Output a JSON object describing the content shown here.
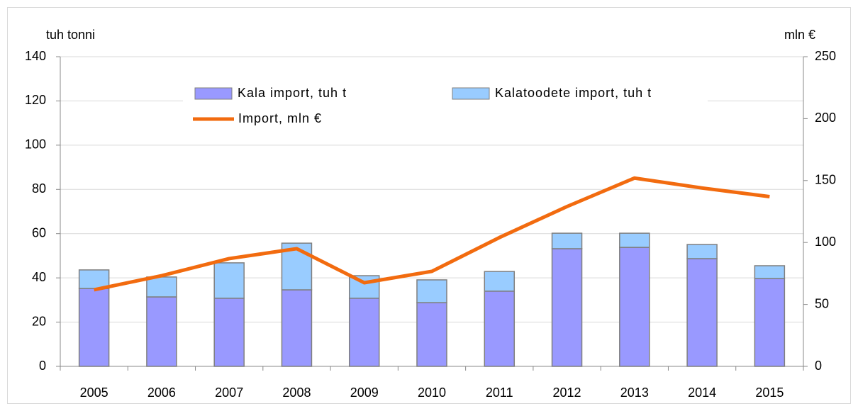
{
  "chart_data": {
    "type": "bar",
    "stacked": true,
    "y_label": "tuh tonni",
    "y2_label": "mln €",
    "categories": [
      "2005",
      "2006",
      "2007",
      "2008",
      "2009",
      "2010",
      "2011",
      "2012",
      "2013",
      "2014",
      "2015"
    ],
    "series": [
      {
        "name": "Kala import, tuh t",
        "type": "bar",
        "color": "#9999ff",
        "values": [
          35.2,
          31.4,
          30.8,
          34.6,
          30.8,
          28.8,
          34,
          53.2,
          53.8,
          48.7,
          39.7
        ]
      },
      {
        "name": "Kalatoodete import, tuh t",
        "type": "bar",
        "color": "#99ccff",
        "values": [
          8.4,
          9,
          16,
          21.1,
          10.2,
          10.3,
          8.9,
          7,
          6.4,
          6.4,
          5.8
        ]
      },
      {
        "name": "Import, mln €",
        "type": "line",
        "axis": "y2",
        "color": "#f26b0f",
        "values": [
          61.8,
          73.2,
          87,
          95,
          67.5,
          76.7,
          104,
          129,
          152,
          144,
          137
        ]
      }
    ],
    "ylim": [
      0,
      140
    ],
    "yticks": [
      0,
      20,
      40,
      60,
      80,
      100,
      120,
      140
    ],
    "y2lim": [
      0,
      250
    ],
    "y2ticks": [
      0,
      50,
      100,
      150,
      200,
      250
    ],
    "grid": true
  }
}
